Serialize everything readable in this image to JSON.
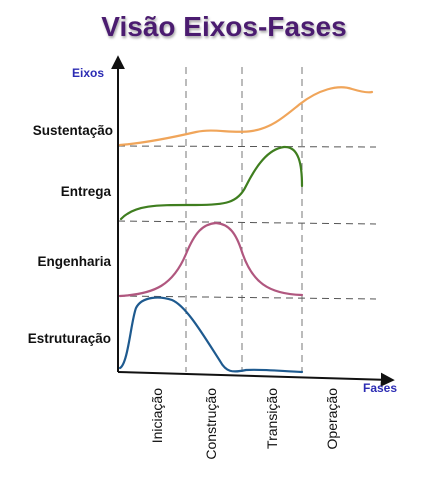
{
  "title": "Visão Eixos-Fases",
  "y_axis_label": "Eixos",
  "x_axis_label": "Fases",
  "rows": [
    {
      "label": "Sustentação",
      "color": "#f0a55a"
    },
    {
      "label": "Entrega",
      "color": "#3f7e1f"
    },
    {
      "label": "Engenharia",
      "color": "#b0577f"
    },
    {
      "label": "Estruturação",
      "color": "#1e5a8f"
    }
  ],
  "phases": [
    "Iniciação",
    "Construção",
    "Transição",
    "Operação"
  ],
  "colors": {
    "title": "#4b1f6f",
    "axis_label": "#2b2bb3",
    "axes": "#111111",
    "grid": "#777777"
  }
}
